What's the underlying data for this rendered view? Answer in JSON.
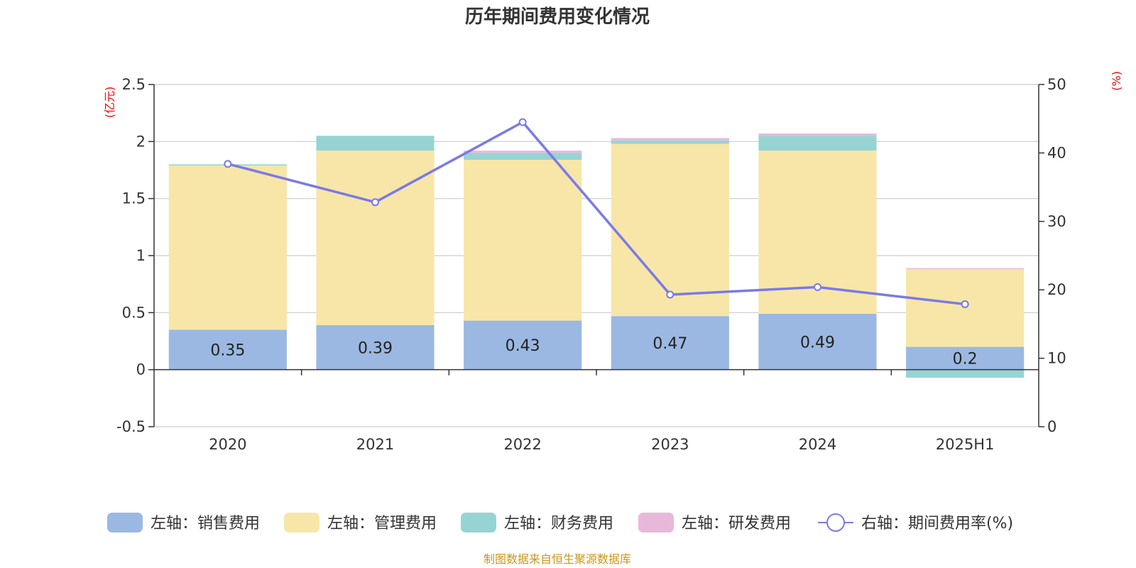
{
  "chart_data": {
    "type": "bar",
    "title": "历年期间费用变化情况",
    "categories": [
      "2020",
      "2021",
      "2022",
      "2023",
      "2024",
      "2025H1"
    ],
    "left_axis": {
      "unit": "(亿元)",
      "ylim": [
        -0.5,
        2.5
      ],
      "ticks": [
        "-0.5",
        "0",
        "0.5",
        "1",
        "1.5",
        "2",
        "2.5"
      ],
      "tick_values": [
        -0.5,
        0,
        0.5,
        1,
        1.5,
        2,
        2.5
      ]
    },
    "right_axis": {
      "unit": "(%)",
      "ylim": [
        0,
        50
      ],
      "ticks": [
        "0",
        "10",
        "20",
        "30",
        "40",
        "50"
      ],
      "tick_values": [
        0,
        10,
        20,
        30,
        40,
        50
      ]
    },
    "series": [
      {
        "name": "左轴：销售费用",
        "type": "bar",
        "axis": "left",
        "color": "#9bb8e2",
        "values": [
          0.35,
          0.39,
          0.43,
          0.47,
          0.49,
          0.2
        ],
        "labels": [
          "0.35",
          "0.39",
          "0.43",
          "0.47",
          "0.49",
          "0.2"
        ]
      },
      {
        "name": "左轴：管理费用",
        "type": "bar",
        "axis": "left",
        "color": "#f7e6a7",
        "values": [
          1.44,
          1.53,
          1.41,
          1.51,
          1.43,
          0.68
        ]
      },
      {
        "name": "左轴：财务费用",
        "type": "bar",
        "axis": "left",
        "color": "#96d4d3",
        "values": [
          0.01,
          0.13,
          0.06,
          0.03,
          0.13,
          -0.07
        ]
      },
      {
        "name": "左轴：研发费用",
        "type": "bar",
        "axis": "left",
        "color": "#e8b8da",
        "values": [
          0.0,
          0.0,
          0.02,
          0.02,
          0.02,
          0.01
        ]
      },
      {
        "name": "右轴：期间费用率(%)",
        "type": "line",
        "axis": "right",
        "color": "#7a7ae8",
        "values": [
          38.4,
          32.8,
          44.5,
          19.3,
          20.4,
          17.9
        ]
      }
    ],
    "grid": true,
    "legend_position": "bottom"
  },
  "source_note": "制图数据来自恒生聚源数据库",
  "colors": {
    "title": "#333333",
    "unit_label": "#ff0000",
    "source_note": "#c9961a",
    "grid": "#cccccc",
    "axis": "#333333"
  }
}
